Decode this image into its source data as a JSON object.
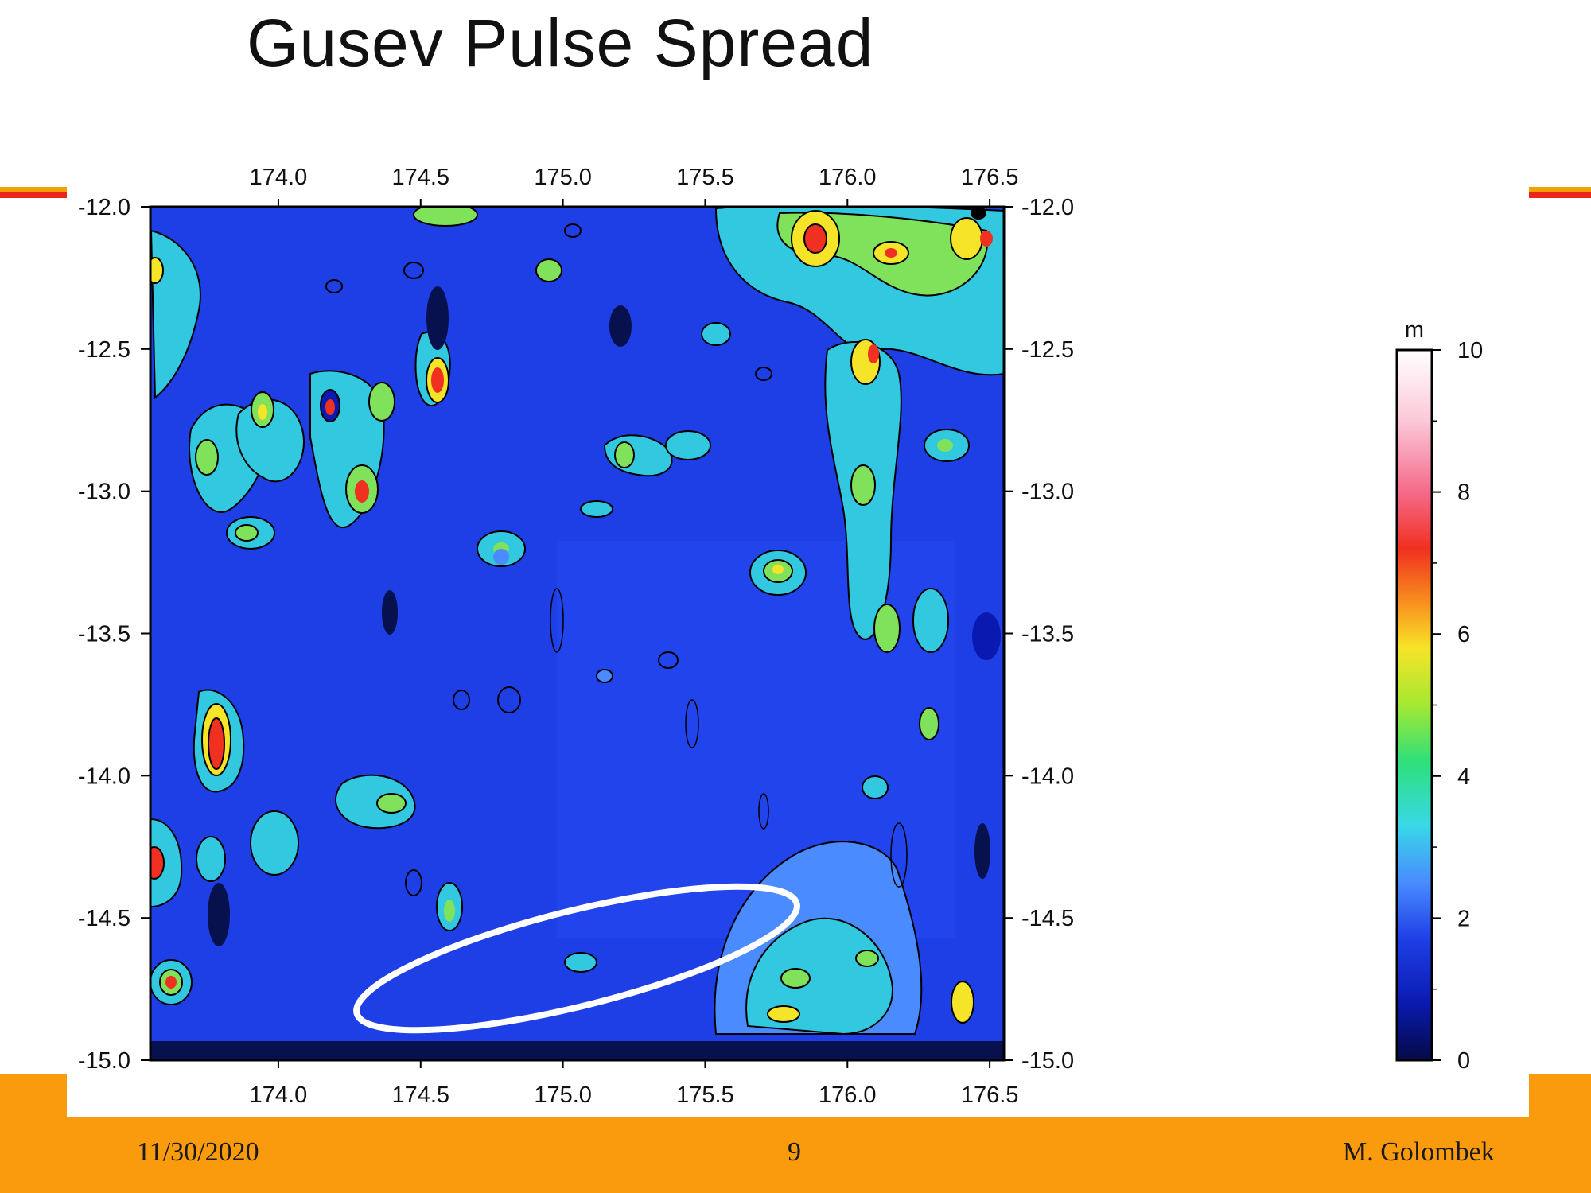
{
  "slide": {
    "title": "Gusev Pulse Spread",
    "footer": {
      "date": "11/30/2020",
      "page": "9",
      "author": "M. Golombek"
    }
  },
  "map": {
    "lon_ticks": [
      "174.0",
      "174.5",
      "175.0",
      "175.5",
      "176.0",
      "176.5"
    ],
    "lat_ticks": [
      "-12.0",
      "-12.5",
      "-13.0",
      "-13.5",
      "-14.0",
      "-14.5",
      "-15.0"
    ],
    "lon_range": [
      173.55,
      176.55
    ],
    "lat_range": [
      -15.0,
      -12.0
    ],
    "colorbar": {
      "unit": "m",
      "ticks": [
        "10",
        "8",
        "6",
        "4",
        "2",
        "0"
      ],
      "range": [
        0,
        10
      ]
    },
    "landing_ellipse": {
      "center_lon": 175.07,
      "center_lat": -14.62,
      "note": "white outline"
    },
    "colors": {
      "background": "#1e3fe6",
      "high": "#e8271c",
      "mid": "#f5d900",
      "low": "#08125a"
    }
  }
}
